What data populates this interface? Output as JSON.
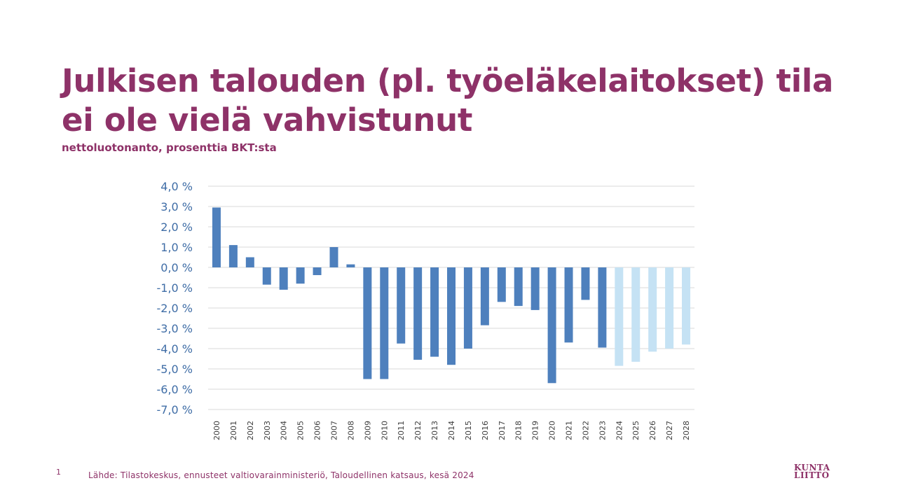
{
  "slide": {
    "title": "Julkisen talouden (pl. työeläkelaitokset) tila ei ole vielä vahvistunut",
    "subtitle": "nettoluotonanto, prosenttia BKT:sta",
    "page_number": "1",
    "source": "Lähde: Tilastokeskus, ennusteet valtiovarainministeriö, Taloudellinen katsaus, kesä 2024",
    "logo_line1": "KUNTA",
    "logo_line2": "LIITTO"
  },
  "colors": {
    "brand": "#8e3268",
    "actual_bar": "#4e80bd",
    "forecast_bar": "#c5e2f4",
    "axis_text": "#3f6da6",
    "grid": "#d9d9d9"
  },
  "chart_data": {
    "type": "bar",
    "title": "",
    "xlabel": "",
    "ylabel": "",
    "ylim": [
      -7,
      4
    ],
    "y_ticks": [
      "4,0 %",
      "3,0 %",
      "2,0 %",
      "1,0 %",
      "0,0 %",
      "-1,0 %",
      "-2,0 %",
      "-3,0 %",
      "-4,0 %",
      "-5,0 %",
      "-6,0 %",
      "-7,0 %"
    ],
    "y_tick_values": [
      4,
      3,
      2,
      1,
      0,
      -1,
      -2,
      -3,
      -4,
      -5,
      -6,
      -7
    ],
    "grid": true,
    "categories": [
      "2000",
      "2001",
      "2002",
      "2003",
      "2004",
      "2005",
      "2006",
      "2007",
      "2008",
      "2009",
      "2010",
      "2011",
      "2012",
      "2013",
      "2014",
      "2015",
      "2016",
      "2017",
      "2018",
      "2019",
      "2020",
      "2021",
      "2022",
      "2023",
      "2024",
      "2025",
      "2026",
      "2027",
      "2028"
    ],
    "values": [
      2.95,
      1.1,
      0.5,
      -0.85,
      -1.1,
      -0.8,
      -0.38,
      1.0,
      0.15,
      -5.5,
      -5.5,
      -3.75,
      -4.55,
      -4.4,
      -4.8,
      -4.0,
      -2.85,
      -1.7,
      -1.9,
      -2.1,
      -5.7,
      -3.7,
      -1.6,
      -3.95,
      -4.85,
      -4.65,
      -4.15,
      -4.0,
      -3.8
    ],
    "forecast_from_index": 24
  }
}
